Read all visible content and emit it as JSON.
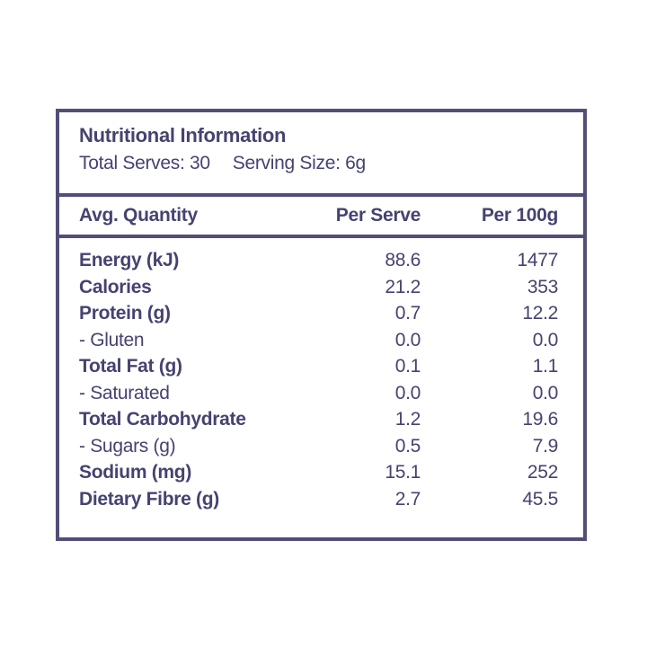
{
  "colors": {
    "text": "#454370",
    "border": "#514f78",
    "background": "#ffffff"
  },
  "panel": {
    "title": "Nutritional Information",
    "serves_label": "Total Serves: 30",
    "serving_size_label": "Serving Size: 6g"
  },
  "table": {
    "columns": [
      "Avg. Quantity",
      "Per Serve",
      "Per 100g"
    ],
    "rows": [
      {
        "label": "Energy (kJ)",
        "per_serve": "88.6",
        "per_100g": "1477",
        "bold": true
      },
      {
        "label": "Calories",
        "per_serve": "21.2",
        "per_100g": "353",
        "bold": true
      },
      {
        "label": "Protein (g)",
        "per_serve": "0.7",
        "per_100g": "12.2",
        "bold": true
      },
      {
        "label": "- Gluten",
        "per_serve": "0.0",
        "per_100g": "0.0",
        "bold": false
      },
      {
        "label": "Total Fat (g)",
        "per_serve": "0.1",
        "per_100g": "1.1",
        "bold": true
      },
      {
        "label": "- Saturated",
        "per_serve": "0.0",
        "per_100g": "0.0",
        "bold": false
      },
      {
        "label": "Total Carbohydrate",
        "per_serve": "1.2",
        "per_100g": "19.6",
        "bold": true
      },
      {
        "label": "- Sugars (g)",
        "per_serve": "0.5",
        "per_100g": "7.9",
        "bold": false
      },
      {
        "label": "Sodium (mg)",
        "per_serve": "15.1",
        "per_100g": "252",
        "bold": true
      },
      {
        "label": "Dietary Fibre (g)",
        "per_serve": "2.7",
        "per_100g": "45.5",
        "bold": true
      }
    ]
  }
}
